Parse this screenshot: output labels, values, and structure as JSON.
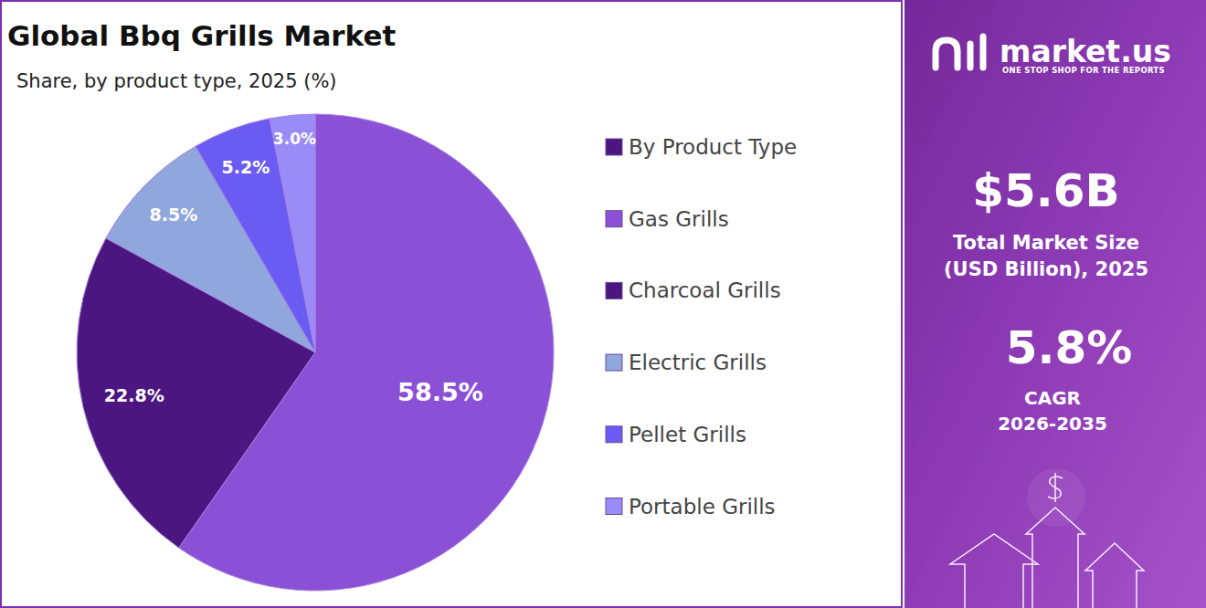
{
  "chart_data": {
    "type": "pie",
    "title": "Global Bbq Grills Market",
    "subtitle": "Share, by product type, 2025 (%)",
    "legend_title": "By Product Type",
    "categories": [
      "Gas Grills",
      "Charcoal Grills",
      "Electric Grills",
      "Pellet Grills",
      "Portable Grills"
    ],
    "values": [
      58.5,
      22.8,
      8.5,
      5.2,
      3.0
    ],
    "value_labels": [
      "58.5%",
      "22.8%",
      "8.5%",
      "5.2%",
      "3.0%"
    ],
    "colors": [
      "#8a50d5",
      "#4b1680",
      "#8fa7dc",
      "#6a5cf2",
      "#9a8cf6"
    ],
    "data_labels": true,
    "legend": "right"
  },
  "side_panel": {
    "brand": "market.us",
    "tagline": "ONE STOP SHOP FOR THE REPORTS",
    "stats": [
      {
        "value": "$5.6B",
        "caption": "Total Market Size (USD Billion), 2025"
      },
      {
        "value": "5.8%",
        "caption": "CAGR 2026-2035"
      }
    ]
  }
}
